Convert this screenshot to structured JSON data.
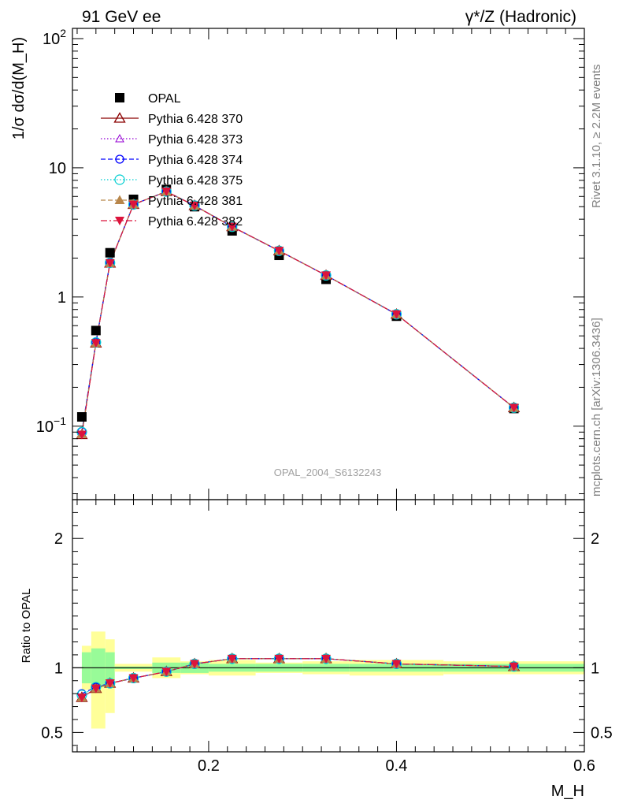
{
  "header": {
    "left": "91 GeV ee",
    "right": "γ*/Z (Hadronic)"
  },
  "side_labels": {
    "rivet": "Rivet 3.1.10, ≥ 2.2M events",
    "source": "mcplots.cern.ch [arXiv:1306.3436]"
  },
  "watermark": "OPAL_2004_S6132243",
  "colors": {
    "data": "#000000",
    "band_inner": "#98fb98",
    "band_outer": "#ffff99"
  },
  "chart_data": [
    {
      "type": "scatter",
      "panel": "main",
      "ylabel": "1/σ dσ/d(M_H)",
      "yscale": "log",
      "ylim": [
        0.027,
        120
      ],
      "xlim": [
        0.055,
        0.6
      ],
      "y_ticks": [
        {
          "value": 0.1,
          "label": "10^-1"
        },
        {
          "value": 1,
          "label": "1"
        },
        {
          "value": 10,
          "label": "10"
        },
        {
          "value": 100,
          "label": "10^2"
        }
      ],
      "legend_position": "top-left",
      "x": [
        0.065,
        0.08,
        0.095,
        0.12,
        0.155,
        0.185,
        0.225,
        0.275,
        0.325,
        0.4,
        0.525
      ],
      "series": [
        {
          "name": "OPAL",
          "color": "#000000",
          "marker": "square-filled",
          "line": "none",
          "values": [
            0.118,
            0.55,
            2.2,
            5.7,
            6.8,
            5.0,
            3.25,
            2.1,
            1.37,
            0.71,
            0.137
          ]
        },
        {
          "name": "Pythia 6.428 370",
          "color": "#8b0000",
          "marker": "triangle-open",
          "line": "solid",
          "values": [
            0.086,
            0.44,
            1.83,
            5.2,
            6.55,
            5.1,
            3.5,
            2.28,
            1.47,
            0.735,
            0.139
          ]
        },
        {
          "name": "Pythia 6.428 373",
          "color": "#9400d3",
          "marker": "triangle-open-small",
          "line": "dotted",
          "values": [
            0.087,
            0.44,
            1.83,
            5.2,
            6.55,
            5.1,
            3.5,
            2.28,
            1.47,
            0.735,
            0.139
          ]
        },
        {
          "name": "Pythia 6.428 374",
          "color": "#0000ff",
          "marker": "circle-open",
          "line": "dashed",
          "values": [
            0.091,
            0.445,
            1.84,
            5.2,
            6.55,
            5.1,
            3.5,
            2.28,
            1.47,
            0.735,
            0.139
          ]
        },
        {
          "name": "Pythia 6.428 375",
          "color": "#00ced1",
          "marker": "circle-open-large",
          "line": "dotted",
          "values": [
            0.09,
            0.445,
            1.84,
            5.2,
            6.55,
            5.1,
            3.5,
            2.28,
            1.47,
            0.735,
            0.139
          ]
        },
        {
          "name": "Pythia 6.428 381",
          "color": "#b8864b",
          "marker": "triangle-filled",
          "line": "dashed",
          "values": [
            0.087,
            0.44,
            1.83,
            5.2,
            6.55,
            5.1,
            3.5,
            2.28,
            1.47,
            0.735,
            0.139
          ]
        },
        {
          "name": "Pythia 6.428 382",
          "color": "#dc143c",
          "marker": "triangle-down-filled",
          "line": "dashdot",
          "values": [
            0.086,
            0.44,
            1.83,
            5.2,
            6.55,
            5.1,
            3.5,
            2.28,
            1.47,
            0.735,
            0.139
          ]
        }
      ]
    },
    {
      "type": "line",
      "panel": "ratio",
      "ylabel": "Ratio to OPAL",
      "xlabel": "M_H",
      "ylim": [
        0.35,
        2.3
      ],
      "xlim": [
        0.055,
        0.6
      ],
      "y_ticks": [
        {
          "value": 0.5,
          "label": "0.5"
        },
        {
          "value": 1,
          "label": "1"
        },
        {
          "value": 2,
          "label": "2"
        }
      ],
      "x_ticks": [
        {
          "value": 0.2,
          "label": "0.2"
        },
        {
          "value": 0.4,
          "label": "0.4"
        },
        {
          "value": 0.6,
          "label": "0.6"
        }
      ],
      "x": [
        0.065,
        0.08,
        0.095,
        0.12,
        0.155,
        0.185,
        0.225,
        0.275,
        0.325,
        0.4,
        0.525
      ],
      "band_bins": [
        {
          "x0": 0.065,
          "x1": 0.075,
          "inner": [
            0.88,
            1.12
          ],
          "outer": [
            0.83,
            1.17
          ]
        },
        {
          "x0": 0.075,
          "x1": 0.09,
          "inner": [
            0.85,
            1.15
          ],
          "outer": [
            0.53,
            1.28
          ]
        },
        {
          "x0": 0.09,
          "x1": 0.1,
          "inner": [
            0.88,
            1.12
          ],
          "outer": [
            0.65,
            1.22
          ]
        },
        {
          "x0": 0.1,
          "x1": 0.14,
          "inner": [
            0.99,
            1.01
          ],
          "outer": [
            0.97,
            1.03
          ]
        },
        {
          "x0": 0.14,
          "x1": 0.17,
          "inner": [
            0.96,
            1.04
          ],
          "outer": [
            0.92,
            1.08
          ]
        },
        {
          "x0": 0.17,
          "x1": 0.2,
          "inner": [
            0.96,
            1.04
          ],
          "outer": [
            0.95,
            1.05
          ]
        },
        {
          "x0": 0.2,
          "x1": 0.25,
          "inner": [
            0.97,
            1.03
          ],
          "outer": [
            0.94,
            1.06
          ]
        },
        {
          "x0": 0.25,
          "x1": 0.3,
          "inner": [
            0.97,
            1.03
          ],
          "outer": [
            0.96,
            1.04
          ]
        },
        {
          "x0": 0.3,
          "x1": 0.35,
          "inner": [
            0.97,
            1.03
          ],
          "outer": [
            0.95,
            1.05
          ]
        },
        {
          "x0": 0.35,
          "x1": 0.45,
          "inner": [
            0.97,
            1.03
          ],
          "outer": [
            0.94,
            1.06
          ]
        },
        {
          "x0": 0.45,
          "x1": 0.6,
          "inner": [
            0.97,
            1.03
          ],
          "outer": [
            0.95,
            1.05
          ]
        }
      ],
      "series": [
        {
          "name": "Pythia 6.428 370",
          "color": "#8b0000",
          "marker": "triangle-open",
          "line": "solid",
          "values": [
            0.77,
            0.84,
            0.88,
            0.92,
            0.97,
            1.03,
            1.07,
            1.07,
            1.07,
            1.03,
            1.01
          ]
        },
        {
          "name": "Pythia 6.428 373",
          "color": "#9400d3",
          "marker": "triangle-open-small",
          "line": "dotted",
          "values": [
            0.77,
            0.84,
            0.88,
            0.92,
            0.97,
            1.03,
            1.07,
            1.07,
            1.07,
            1.03,
            1.01
          ]
        },
        {
          "name": "Pythia 6.428 374",
          "color": "#0000ff",
          "marker": "circle-open",
          "line": "dashed",
          "values": [
            0.8,
            0.85,
            0.88,
            0.92,
            0.97,
            1.03,
            1.07,
            1.07,
            1.07,
            1.03,
            1.01
          ]
        },
        {
          "name": "Pythia 6.428 375",
          "color": "#00ced1",
          "marker": "circle-open-large",
          "line": "dotted",
          "values": [
            0.79,
            0.85,
            0.88,
            0.92,
            0.97,
            1.03,
            1.07,
            1.07,
            1.07,
            1.03,
            1.01
          ]
        },
        {
          "name": "Pythia 6.428 381",
          "color": "#b8864b",
          "marker": "triangle-filled",
          "line": "dashed",
          "values": [
            0.77,
            0.84,
            0.88,
            0.92,
            0.97,
            1.03,
            1.07,
            1.07,
            1.07,
            1.03,
            1.01
          ]
        },
        {
          "name": "Pythia 6.428 382",
          "color": "#dc143c",
          "marker": "triangle-down-filled",
          "line": "dashdot",
          "values": [
            0.77,
            0.84,
            0.88,
            0.92,
            0.97,
            1.03,
            1.07,
            1.07,
            1.07,
            1.03,
            1.01
          ]
        }
      ]
    }
  ]
}
